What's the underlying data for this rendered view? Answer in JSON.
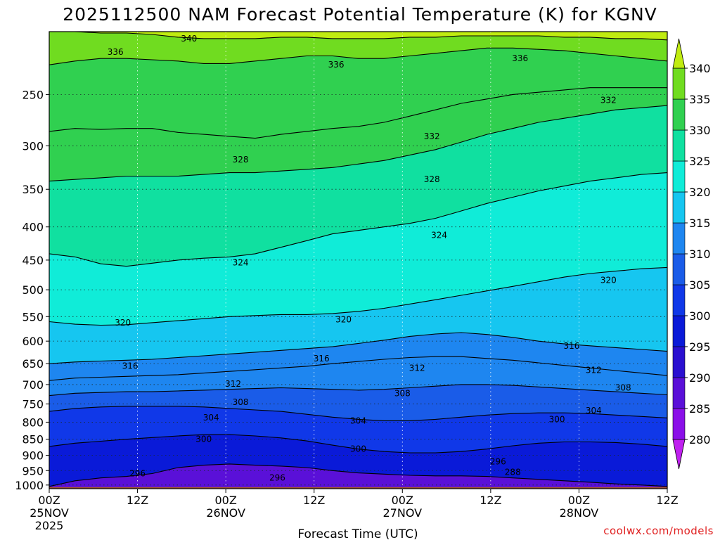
{
  "chart_data": {
    "type": "heatmap",
    "title": "2025112500 NAM Forecast Potential Temperature (K) for KGNV",
    "xlabel": "Forecast Time (UTC)",
    "ylabel": "",
    "x_ticks": [
      {
        "hours": 0,
        "label": "00Z",
        "date": "25NOV",
        "year": "2025"
      },
      {
        "hours": 12,
        "label": "12Z"
      },
      {
        "hours": 24,
        "label": "00Z",
        "date": "26NOV"
      },
      {
        "hours": 36,
        "label": "12Z"
      },
      {
        "hours": 48,
        "label": "00Z",
        "date": "27NOV"
      },
      {
        "hours": 60,
        "label": "12Z"
      },
      {
        "hours": 72,
        "label": "00Z",
        "date": "28NOV"
      },
      {
        "hours": 84,
        "label": "12Z"
      }
    ],
    "xlim": [
      0,
      84
    ],
    "y_ticks": [
      250,
      300,
      350,
      400,
      450,
      500,
      550,
      600,
      650,
      700,
      750,
      800,
      850,
      900,
      950,
      1000
    ],
    "ylim": [
      1013,
      200
    ],
    "y_scale": "log",
    "colorbar": {
      "levels": [
        280,
        285,
        290,
        295,
        300,
        305,
        310,
        315,
        320,
        325,
        330,
        335,
        340
      ],
      "colors": [
        "#c020f0",
        "#8a10e8",
        "#5a10d8",
        "#2a10d0",
        "#0a1ad8",
        "#1038e8",
        "#1a5ce8",
        "#1e86f0",
        "#16c6f0",
        "#10ecd8",
        "#10e0a0",
        "#30d050",
        "#70dc20",
        "#c0ec10"
      ],
      "extends": "both"
    },
    "contours": [
      {
        "label": "296",
        "p": [
          1005,
          985,
          975,
          970,
          960,
          940,
          932,
          928,
          932,
          935,
          940,
          950,
          958,
          962,
          966,
          968,
          968,
          970,
          975,
          980,
          985,
          990,
          996,
          1000,
          1005
        ]
      },
      {
        "label": "300",
        "p": [
          872,
          862,
          856,
          850,
          845,
          840,
          836,
          836,
          840,
          846,
          855,
          868,
          880,
          888,
          892,
          892,
          888,
          880,
          870,
          862,
          858,
          858,
          860,
          865,
          872
        ]
      },
      {
        "label": "304",
        "p": [
          770,
          762,
          758,
          756,
          756,
          756,
          758,
          762,
          766,
          770,
          778,
          786,
          792,
          796,
          796,
          792,
          786,
          780,
          776,
          774,
          774,
          776,
          780,
          784,
          788
        ]
      },
      {
        "label": "308",
        "p": [
          728,
          722,
          720,
          718,
          718,
          716,
          714,
          712,
          710,
          708,
          710,
          712,
          714,
          712,
          708,
          704,
          700,
          700,
          702,
          706,
          710,
          714,
          718,
          722,
          726
        ]
      },
      {
        "label": "312",
        "p": [
          690,
          684,
          682,
          680,
          678,
          676,
          672,
          668,
          664,
          660,
          656,
          650,
          645,
          640,
          636,
          634,
          634,
          638,
          642,
          648,
          654,
          660,
          666,
          672,
          678
        ]
      },
      {
        "label": "316",
        "p": [
          650,
          646,
          644,
          642,
          640,
          636,
          632,
          628,
          624,
          620,
          616,
          612,
          605,
          598,
          590,
          585,
          582,
          586,
          592,
          600,
          606,
          610,
          614,
          618,
          622
        ]
      },
      {
        "label": "320",
        "p": [
          560,
          565,
          567,
          566,
          562,
          558,
          554,
          550,
          548,
          546,
          546,
          544,
          540,
          534,
          526,
          518,
          510,
          502,
          494,
          486,
          478,
          472,
          468,
          464,
          462
        ]
      },
      {
        "label": "324",
        "p": [
          440,
          445,
          456,
          460,
          455,
          450,
          447,
          445,
          440,
          430,
          420,
          410,
          405,
          400,
          395,
          388,
          378,
          368,
          360,
          352,
          346,
          340,
          336,
          332,
          330
        ]
      },
      {
        "label": "328",
        "p": [
          340,
          338,
          336,
          334,
          334,
          334,
          332,
          330,
          330,
          328,
          326,
          324,
          320,
          316,
          310,
          304,
          296,
          288,
          282,
          276,
          272,
          268,
          264,
          262,
          260
        ]
      },
      {
        "label": "332",
        "p": [
          285,
          282,
          283,
          282,
          282,
          286,
          288,
          290,
          292,
          288,
          285,
          282,
          280,
          276,
          270,
          264,
          258,
          254,
          250,
          248,
          246,
          244,
          244,
          244,
          244
        ]
      },
      {
        "label": "336",
        "p": [
          225,
          222,
          220,
          220,
          221,
          222,
          224,
          224,
          222,
          220,
          218,
          218,
          220,
          220,
          218,
          216,
          214,
          212,
          212,
          213,
          214,
          216,
          218,
          220,
          222
        ]
      },
      {
        "label": "340",
        "p": [
          200,
          200,
          201,
          201,
          202,
          204,
          205,
          205,
          205,
          204,
          204,
          205,
          205,
          205,
          204,
          204,
          203,
          203,
          203,
          203,
          204,
          204,
          205,
          205,
          206
        ]
      }
    ],
    "contour_label_positions": [
      {
        "label": "336",
        "hours": 9,
        "p": 215
      },
      {
        "label": "340",
        "hours": 19,
        "p": 205
      },
      {
        "label": "336",
        "hours": 39,
        "p": 225
      },
      {
        "label": "336",
        "hours": 64,
        "p": 220
      },
      {
        "label": "332",
        "hours": 76,
        "p": 255
      },
      {
        "label": "332",
        "hours": 52,
        "p": 290
      },
      {
        "label": "328",
        "hours": 26,
        "p": 315
      },
      {
        "label": "328",
        "hours": 52,
        "p": 338
      },
      {
        "label": "324",
        "hours": 53,
        "p": 412
      },
      {
        "label": "324",
        "hours": 26,
        "p": 454
      },
      {
        "label": "320",
        "hours": 76,
        "p": 483
      },
      {
        "label": "320",
        "hours": 10,
        "p": 562
      },
      {
        "label": "320",
        "hours": 40,
        "p": 556
      },
      {
        "label": "316",
        "hours": 71,
        "p": 610
      },
      {
        "label": "316",
        "hours": 37,
        "p": 638
      },
      {
        "label": "316",
        "hours": 11,
        "p": 655
      },
      {
        "label": "312",
        "hours": 50,
        "p": 660
      },
      {
        "label": "312",
        "hours": 74,
        "p": 665
      },
      {
        "label": "312",
        "hours": 25,
        "p": 698
      },
      {
        "label": "308",
        "hours": 78,
        "p": 708
      },
      {
        "label": "308",
        "hours": 48,
        "p": 722
      },
      {
        "label": "308",
        "hours": 26,
        "p": 745
      },
      {
        "label": "304",
        "hours": 74,
        "p": 768
      },
      {
        "label": "304",
        "hours": 22,
        "p": 787
      },
      {
        "label": "304",
        "hours": 42,
        "p": 796
      },
      {
        "label": "300",
        "hours": 69,
        "p": 792
      },
      {
        "label": "300",
        "hours": 21,
        "p": 850
      },
      {
        "label": "300",
        "hours": 42,
        "p": 880
      },
      {
        "label": "296",
        "hours": 61,
        "p": 920
      },
      {
        "label": "296",
        "hours": 12,
        "p": 960
      },
      {
        "label": "296",
        "hours": 31,
        "p": 975
      },
      {
        "label": "288",
        "hours": 63,
        "p": 955
      }
    ]
  },
  "watermark": "coolwx.com/models"
}
